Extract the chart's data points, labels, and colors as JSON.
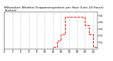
{
  "title": "Milwaukee Weather Evapotranspiration per Hour (Last 24 Hours) (Inches)",
  "hours": [
    0,
    1,
    2,
    3,
    4,
    5,
    6,
    7,
    8,
    9,
    10,
    11,
    12,
    13,
    14,
    15,
    16,
    17,
    18,
    19,
    20,
    21,
    22,
    23
  ],
  "values": [
    0.0,
    0.0,
    0.0,
    0.0,
    0.0,
    0.0,
    0.0,
    0.0,
    0.0,
    0.0,
    0.0,
    0.0,
    0.003,
    0.012,
    0.022,
    0.048,
    0.048,
    0.048,
    0.048,
    0.048,
    0.035,
    0.022,
    0.003,
    0.0
  ],
  "line_color": "#ff0000",
  "line_style": "--",
  "line_width": 0.7,
  "grid_color": "#888888",
  "grid_style": ":",
  "background_color": "#ffffff",
  "ylim": [
    0,
    0.055
  ],
  "yticks": [
    0.01,
    0.02,
    0.03,
    0.04,
    0.05
  ],
  "ytick_labels": [
    ".01",
    ".02",
    ".03",
    ".04",
    ".05"
  ],
  "xlim": [
    0,
    23
  ],
  "xticks": [
    0,
    2,
    4,
    6,
    8,
    10,
    12,
    14,
    16,
    18,
    20,
    22
  ],
  "xtick_labels": [
    "0",
    "2",
    "4",
    "6",
    "8",
    "10",
    "12",
    "14",
    "16",
    "18",
    "20",
    "22"
  ],
  "title_fontsize": 3.2,
  "tick_fontsize": 2.8,
  "title_color": "#000000"
}
